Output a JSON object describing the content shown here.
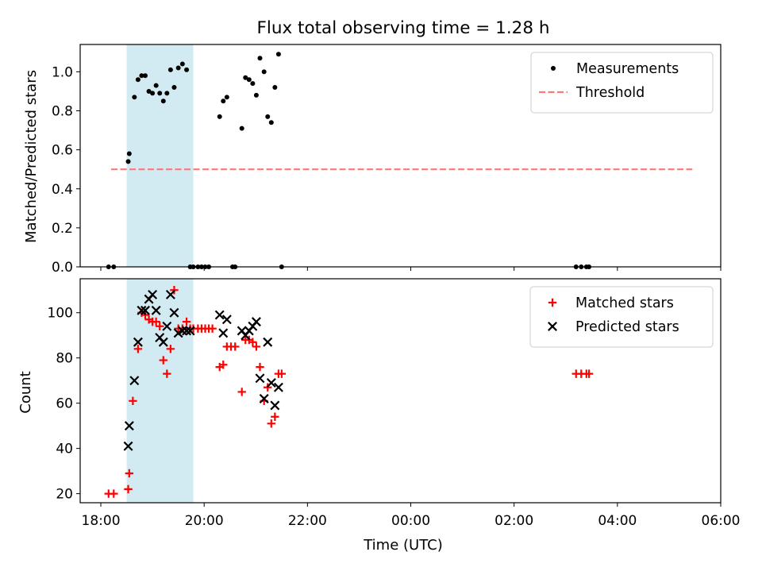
{
  "chart_data": [
    {
      "type": "scatter",
      "title": "Flux total observing time = 1.28 h",
      "xlabel": "",
      "ylabel": "Matched/Predicted stars",
      "xlim": [
        17.6,
        30.0
      ],
      "ylim": [
        0.0,
        1.14
      ],
      "yticks": [
        0.0,
        0.2,
        0.4,
        0.6,
        0.8,
        1.0
      ],
      "ytick_labels": [
        "0.0",
        "0.2",
        "0.4",
        "0.6",
        "0.8",
        "1.0"
      ],
      "xticks": [
        18,
        20,
        22,
        24,
        26,
        28,
        30
      ],
      "shaded_span": [
        18.5,
        19.79
      ],
      "legend_position": "upper right",
      "series": [
        {
          "name": "Measurements",
          "marker": "dot",
          "color": "#000000",
          "x": [
            18.15,
            18.25,
            18.53,
            18.55,
            18.65,
            18.72,
            18.79,
            18.86,
            18.93,
            19.0,
            19.07,
            19.14,
            19.21,
            19.28,
            19.35,
            19.42,
            19.5,
            19.58,
            19.66,
            19.73,
            19.79,
            19.88,
            19.95,
            20.02,
            20.09,
            20.3,
            20.37,
            20.44,
            20.55,
            20.6,
            20.73,
            20.8,
            20.87,
            20.94,
            21.01,
            21.08,
            21.16,
            21.23,
            21.3,
            21.37,
            21.44,
            21.5,
            27.2,
            27.3,
            27.4,
            27.45
          ],
          "y": [
            0.0,
            0.0,
            0.54,
            0.58,
            0.87,
            0.96,
            0.98,
            0.98,
            0.9,
            0.89,
            0.93,
            0.89,
            0.85,
            0.89,
            1.01,
            0.92,
            1.02,
            1.04,
            1.01,
            0.0,
            0.0,
            0.0,
            0.0,
            0.0,
            0.0,
            0.77,
            0.85,
            0.87,
            0.0,
            0.0,
            0.71,
            0.97,
            0.96,
            0.94,
            0.88,
            1.07,
            1.0,
            0.77,
            0.74,
            0.92,
            1.09,
            0.0,
            0.0,
            0.0,
            0.0,
            0.0
          ]
        },
        {
          "name": "Threshold",
          "style": "dashed",
          "color": "#ff7777",
          "x": [
            18.2,
            29.45
          ],
          "y": [
            0.5,
            0.5
          ]
        }
      ]
    },
    {
      "type": "scatter",
      "title": "",
      "xlabel": "Time (UTC)",
      "ylabel": "Count",
      "xlim": [
        17.6,
        30.0
      ],
      "ylim": [
        16,
        115
      ],
      "yticks": [
        20,
        40,
        60,
        80,
        100
      ],
      "ytick_labels": [
        "20",
        "40",
        "60",
        "80",
        "100"
      ],
      "xticks": [
        18,
        20,
        22,
        24,
        26,
        28,
        30
      ],
      "xtick_labels": [
        "18:00",
        "20:00",
        "22:00",
        "00:00",
        "02:00",
        "04:00",
        "06:00"
      ],
      "shaded_span": [
        18.5,
        19.79
      ],
      "legend_position": "upper right",
      "series": [
        {
          "name": "Matched stars",
          "marker": "plus",
          "color": "#ff0000",
          "x": [
            18.15,
            18.25,
            18.53,
            18.55,
            18.62,
            18.72,
            18.79,
            18.86,
            18.93,
            19.0,
            19.07,
            19.14,
            19.21,
            19.28,
            19.35,
            19.42,
            19.5,
            19.58,
            19.66,
            19.73,
            19.79,
            19.88,
            19.95,
            20.02,
            20.09,
            20.16,
            20.3,
            20.37,
            20.44,
            20.52,
            20.6,
            20.73,
            20.8,
            20.87,
            20.94,
            21.01,
            21.08,
            21.16,
            21.23,
            21.3,
            21.37,
            21.44,
            21.5,
            27.2,
            27.3,
            27.4,
            27.45
          ],
          "y": [
            20,
            20,
            22,
            29,
            61,
            84,
            100,
            99,
            97,
            96,
            96,
            94,
            79,
            73,
            84,
            110,
            93,
            93,
            96,
            93,
            93,
            93,
            93,
            93,
            93,
            93,
            76,
            77,
            85,
            85,
            85,
            65,
            88,
            88,
            87,
            85,
            76,
            61,
            67,
            51,
            54,
            73,
            73,
            73,
            73,
            73,
            73
          ]
        },
        {
          "name": "Predicted stars",
          "marker": "x",
          "color": "#000000",
          "x": [
            18.53,
            18.55,
            18.65,
            18.72,
            18.79,
            18.86,
            18.93,
            19.0,
            19.07,
            19.14,
            19.21,
            19.28,
            19.35,
            19.42,
            19.5,
            19.58,
            19.66,
            19.73,
            20.3,
            20.37,
            20.44,
            20.73,
            20.8,
            20.87,
            20.94,
            21.01,
            21.08,
            21.16,
            21.23,
            21.3,
            21.37,
            21.44
          ],
          "y": [
            41,
            50,
            70,
            87,
            101,
            101,
            106,
            108,
            101,
            89,
            87,
            94,
            108,
            100,
            91,
            92,
            92,
            92,
            99,
            91,
            97,
            92,
            90,
            92,
            94,
            96,
            71,
            62,
            87,
            69,
            59,
            67
          ]
        }
      ]
    }
  ]
}
